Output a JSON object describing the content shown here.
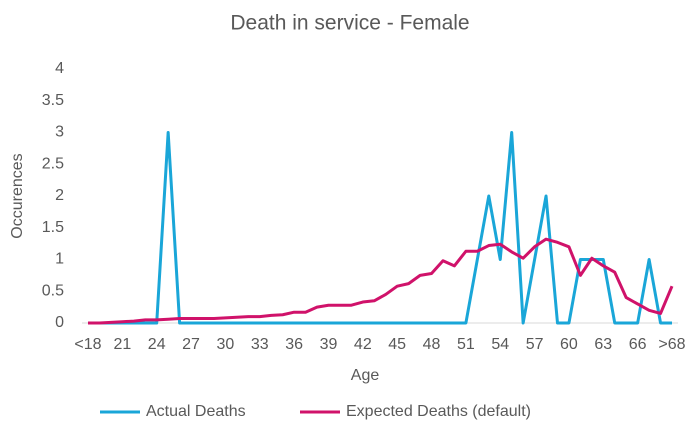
{
  "chart_data": {
    "type": "line",
    "title": "Death in service - Female",
    "x_label": "Age",
    "y_label": "Occurences",
    "categories": [
      "<18",
      null,
      null,
      "21",
      null,
      null,
      "24",
      null,
      null,
      "27",
      null,
      null,
      "30",
      null,
      null,
      "33",
      null,
      null,
      "36",
      null,
      null,
      "39",
      null,
      null,
      "42",
      null,
      null,
      "45",
      null,
      null,
      "48",
      null,
      null,
      "51",
      null,
      null,
      "54",
      null,
      null,
      "57",
      null,
      null,
      "60",
      null,
      null,
      "63",
      null,
      null,
      "66",
      null,
      null,
      ">68"
    ],
    "series": [
      {
        "name": "Actual Deaths",
        "color": "#1aa6d8",
        "values": [
          0,
          0,
          0,
          0,
          0,
          0,
          0,
          3,
          0,
          0,
          0,
          0,
          0,
          0,
          0,
          0,
          0,
          0,
          0,
          0,
          0,
          0,
          0,
          0,
          0,
          0,
          0,
          0,
          0,
          0,
          0,
          0,
          0,
          0,
          1,
          2,
          1,
          3,
          0,
          1,
          2,
          0,
          0,
          1,
          1,
          1,
          0,
          0,
          0,
          1,
          0,
          0
        ]
      },
      {
        "name": "Expected Deaths (default)",
        "color": "#d0126a",
        "values": [
          0,
          0,
          0.01,
          0.02,
          0.03,
          0.05,
          0.05,
          0.06,
          0.07,
          0.07,
          0.07,
          0.07,
          0.08,
          0.09,
          0.1,
          0.1,
          0.12,
          0.13,
          0.17,
          0.17,
          0.25,
          0.28,
          0.28,
          0.28,
          0.33,
          0.35,
          0.45,
          0.58,
          0.62,
          0.75,
          0.78,
          0.98,
          0.9,
          1.13,
          1.13,
          1.22,
          1.24,
          1.12,
          1.02,
          1.2,
          1.32,
          1.27,
          1.2,
          0.75,
          1.02,
          0.9,
          0.8,
          0.4,
          0.3,
          0.2,
          0.15,
          0.58
        ]
      }
    ],
    "ylim": [
      0,
      4
    ],
    "yticks": [
      0,
      0.5,
      1,
      1.5,
      2,
      2.5,
      3,
      3.5,
      4
    ],
    "legend": "bottom"
  }
}
